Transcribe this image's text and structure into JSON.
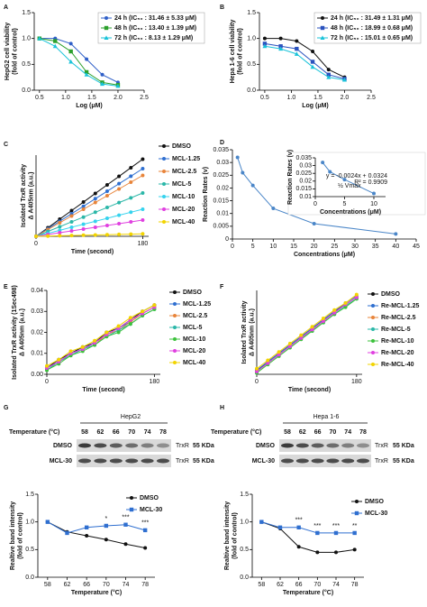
{
  "chart_data": [
    {
      "type": "line",
      "panel": "A",
      "x_label": "Log (μM)",
      "y_label": [
        "HepG2 cell viability",
        "(fold of control)"
      ],
      "x": [
        0.5,
        0.8,
        1.1,
        1.4,
        1.7,
        2.0
      ],
      "xlim": [
        0.4,
        2.5
      ],
      "xticks": [
        0.5,
        {
          "value": 1,
          "label": "1.0"
        },
        1.5,
        {
          "value": 2,
          "label": "2.0"
        },
        2.5
      ],
      "ylim": [
        0,
        1.5
      ],
      "yticks": [
        {
          "value": 0,
          "label": "0.0"
        },
        0.5,
        {
          "value": 1,
          "label": "1.0"
        },
        1.5
      ],
      "series": [
        {
          "name": "24 h (IC₅₀ : 31.46 ± 5.33 μM)",
          "color": "#2f5fc8",
          "marker": "circle",
          "values": [
            1.0,
            1.0,
            0.9,
            0.6,
            0.3,
            0.15
          ]
        },
        {
          "name": "48 h (IC₅₀ : 13.40 ± 1.39 μM)",
          "color": "#2ca02c",
          "marker": "square",
          "values": [
            1.0,
            0.95,
            0.75,
            0.35,
            0.15,
            0.1
          ]
        },
        {
          "name": "72 h (IC₅₀ : 8.13 ± 1.29 μM)",
          "color": "#19c3d9",
          "marker": "triangle",
          "values": [
            1.0,
            0.85,
            0.55,
            0.3,
            0.12,
            0.08
          ]
        }
      ]
    },
    {
      "type": "line",
      "panel": "B",
      "x_label": "Log (μM)",
      "y_label": [
        "Hepa 1-6 cell viability",
        "(fold of control)"
      ],
      "x": [
        0.5,
        0.8,
        1.1,
        1.4,
        1.7,
        2.0
      ],
      "xlim": [
        0.4,
        2.5
      ],
      "xticks": [
        0.5,
        {
          "value": 1,
          "label": "1.0"
        },
        1.5,
        {
          "value": 2,
          "label": "2.0"
        },
        2.5
      ],
      "ylim": [
        0,
        1.5
      ],
      "yticks": [
        {
          "value": 0,
          "label": "0.0"
        },
        0.5,
        {
          "value": 1,
          "label": "1.0"
        },
        1.5
      ],
      "series": [
        {
          "name": "24 h (IC₅₀ : 31.49 ± 1.31 μM)",
          "color": "#111111",
          "marker": "circle",
          "values": [
            1.0,
            1.0,
            0.95,
            0.75,
            0.4,
            0.25
          ]
        },
        {
          "name": "48 h (IC₅₀ : 18.99 ± 0.68 μM)",
          "color": "#2a52be",
          "marker": "square",
          "values": [
            0.9,
            0.85,
            0.8,
            0.55,
            0.3,
            0.22
          ]
        },
        {
          "name": "72 h (IC₅₀ : 15.01 ± 0.65 μM)",
          "color": "#19c3d9",
          "marker": "triangle",
          "values": [
            0.85,
            0.8,
            0.7,
            0.45,
            0.25,
            0.2
          ]
        }
      ]
    },
    {
      "type": "line",
      "panel": "C",
      "x_label": "Time (second)",
      "y_label": [
        "Isolated TrxR activity",
        "Δ A405nm (a.u.)"
      ],
      "x": [
        0,
        20,
        40,
        60,
        80,
        100,
        120,
        140,
        160,
        180
      ],
      "xlim": [
        0,
        190
      ],
      "xticks": [
        0,
        180
      ],
      "ylim": [
        0,
        0.6
      ],
      "series": [
        {
          "name": "DMSO",
          "color": "#111111",
          "values": [
            0,
            0.063,
            0.127,
            0.19,
            0.253,
            0.317,
            0.38,
            0.443,
            0.507,
            0.57
          ]
        },
        {
          "name": "MCL-1.25",
          "color": "#2f6fd0",
          "values": [
            0,
            0.056,
            0.111,
            0.167,
            0.222,
            0.278,
            0.333,
            0.389,
            0.444,
            0.5
          ]
        },
        {
          "name": "MCL-2.5",
          "color": "#e8843a",
          "values": [
            0,
            0.05,
            0.1,
            0.15,
            0.2,
            0.25,
            0.3,
            0.35,
            0.4,
            0.45
          ]
        },
        {
          "name": "MCL-5",
          "color": "#2bb7a8",
          "values": [
            0,
            0.036,
            0.071,
            0.107,
            0.142,
            0.178,
            0.213,
            0.249,
            0.284,
            0.32
          ]
        },
        {
          "name": "MCL-10",
          "color": "#35d3ee",
          "values": [
            0,
            0.022,
            0.044,
            0.067,
            0.089,
            0.111,
            0.133,
            0.156,
            0.178,
            0.2
          ]
        },
        {
          "name": "MCL-20",
          "color": "#e040e0",
          "values": [
            0,
            0.013,
            0.027,
            0.04,
            0.053,
            0.067,
            0.08,
            0.093,
            0.107,
            0.12
          ]
        },
        {
          "name": "MCL-40",
          "color": "#f2d400",
          "values": [
            0,
            0.002,
            0.004,
            0.006,
            0.008,
            0.01,
            0.012,
            0.014,
            0.016,
            0.018
          ]
        }
      ]
    },
    {
      "type": "line",
      "panel": "D",
      "x_label": "Concentrations (μM)",
      "y_label": [
        "Reaction Rates (v)"
      ],
      "x": [
        1.25,
        2.5,
        5,
        10,
        20,
        40
      ],
      "xlim": [
        0,
        45
      ],
      "xticks": [
        0,
        5,
        10,
        15,
        20,
        25,
        30,
        35,
        40,
        45
      ],
      "ylim": [
        0,
        0.035
      ],
      "yticks": [
        0,
        0.005,
        0.01,
        0.015,
        0.02,
        0.025,
        0.03,
        0.035
      ],
      "series": [
        {
          "color": "#4a86c8",
          "marker": "circle",
          "values": [
            0.032,
            0.026,
            0.021,
            0.012,
            0.006,
            0.002
          ]
        }
      ],
      "inset": {
        "type": "line",
        "x_label": "Concentrations (μM)",
        "y_label": [
          "Reaction Rates (v)"
        ],
        "x": [
          1.25,
          2.5,
          5,
          10
        ],
        "xlim": [
          0,
          12
        ],
        "xticks": [
          0,
          5,
          10
        ],
        "ylim": [
          0.01,
          0.035
        ],
        "yticks": [
          0.01,
          0.015,
          0.02,
          0.025,
          0.03,
          0.035
        ],
        "series": [
          {
            "color": "#4a86c8",
            "marker": "circle",
            "values": [
              0.032,
              0.026,
              0.021,
              0.012
            ]
          }
        ],
        "annotations": [
          "y = -0.0024x + 0.0324",
          "R² = 0.9909",
          "½ Vmax"
        ]
      }
    },
    {
      "type": "line",
      "panel": "E",
      "x_label": "Time (second)",
      "y_label": [
        "Isolated TrxR activity (1Sec498)",
        "Δ A405nm (a.u.)"
      ],
      "x": [
        0,
        20,
        40,
        60,
        80,
        100,
        120,
        140,
        160,
        180
      ],
      "xlim": [
        0,
        190
      ],
      "xticks": [
        0,
        180
      ],
      "ylim": [
        0,
        0.04
      ],
      "yticks": [
        {
          "value": 0,
          "label": "0.00"
        },
        0.01,
        0.02,
        0.03,
        0.04
      ],
      "series": [
        {
          "name": "DMSO",
          "color": "#111111",
          "values": [
            0.003,
            0.007,
            0.01,
            0.013,
            0.015,
            0.02,
            0.022,
            0.026,
            0.03,
            0.033
          ]
        },
        {
          "name": "MCL-1.25",
          "color": "#2f6fd0",
          "values": [
            0.003,
            0.006,
            0.01,
            0.012,
            0.015,
            0.019,
            0.022,
            0.025,
            0.029,
            0.032
          ]
        },
        {
          "name": "MCL-2.5",
          "color": "#e8843a",
          "values": [
            0.002,
            0.006,
            0.009,
            0.012,
            0.014,
            0.019,
            0.021,
            0.025,
            0.029,
            0.032
          ]
        },
        {
          "name": "MCL-5",
          "color": "#2bb7a8",
          "values": [
            0.002,
            0.006,
            0.009,
            0.012,
            0.014,
            0.018,
            0.021,
            0.024,
            0.028,
            0.031
          ]
        },
        {
          "name": "MCL-10",
          "color": "#3cc23c",
          "values": [
            0.002,
            0.005,
            0.009,
            0.011,
            0.014,
            0.018,
            0.02,
            0.024,
            0.028,
            0.031
          ]
        },
        {
          "name": "MCL-20",
          "color": "#e040e0",
          "values": [
            0.003,
            0.006,
            0.01,
            0.012,
            0.015,
            0.019,
            0.022,
            0.026,
            0.029,
            0.032
          ]
        },
        {
          "name": "MCL-40",
          "color": "#f2d400",
          "values": [
            0.004,
            0.007,
            0.011,
            0.013,
            0.016,
            0.02,
            0.023,
            0.027,
            0.03,
            0.033
          ]
        }
      ]
    },
    {
      "type": "line",
      "panel": "F",
      "x_label": "Time (second)",
      "y_label": [
        "Isolated TrxR activity",
        "Δ A405nm (a.u.)"
      ],
      "x": [
        0,
        20,
        40,
        60,
        80,
        100,
        120,
        140,
        160,
        180
      ],
      "xlim": [
        0,
        190
      ],
      "xticks": [
        0,
        180
      ],
      "ylim": [
        0,
        0.6
      ],
      "series": [
        {
          "name": "DMSO",
          "color": "#111111",
          "values": [
            0.02,
            0.09,
            0.15,
            0.21,
            0.27,
            0.33,
            0.39,
            0.45,
            0.5,
            0.55
          ]
        },
        {
          "name": "Re-MCL-1.25",
          "color": "#2f6fd0",
          "values": [
            0.03,
            0.09,
            0.15,
            0.21,
            0.27,
            0.33,
            0.39,
            0.45,
            0.51,
            0.56
          ]
        },
        {
          "name": "Re-MCL-2.5",
          "color": "#e8843a",
          "values": [
            0.02,
            0.08,
            0.14,
            0.2,
            0.26,
            0.32,
            0.38,
            0.44,
            0.5,
            0.55
          ]
        },
        {
          "name": "Re-MCL-5",
          "color": "#2bb7a8",
          "values": [
            0.02,
            0.08,
            0.14,
            0.2,
            0.26,
            0.31,
            0.37,
            0.43,
            0.49,
            0.54
          ]
        },
        {
          "name": "Re-MCL-10",
          "color": "#3cc23c",
          "values": [
            0.01,
            0.07,
            0.13,
            0.19,
            0.25,
            0.31,
            0.37,
            0.43,
            0.48,
            0.54
          ]
        },
        {
          "name": "Re-MCL-20",
          "color": "#e040e0",
          "values": [
            0.02,
            0.08,
            0.14,
            0.2,
            0.26,
            0.32,
            0.38,
            0.44,
            0.5,
            0.55
          ]
        },
        {
          "name": "Re-MCL-40",
          "color": "#f2d400",
          "values": [
            0.04,
            0.1,
            0.16,
            0.22,
            0.28,
            0.34,
            0.4,
            0.46,
            0.51,
            0.57
          ]
        }
      ]
    },
    {
      "type": "line",
      "panel": "G",
      "x_label": "Temperature (°C)",
      "y_label": [
        "Realtive band intensity",
        "(fold of control)"
      ],
      "x": [
        58,
        62,
        66,
        70,
        74,
        78
      ],
      "xlim": [
        56,
        80
      ],
      "xticks": [
        58,
        62,
        66,
        70,
        74,
        78
      ],
      "ylim": [
        0,
        1.5
      ],
      "yticks": [
        {
          "value": 0,
          "label": "0.0"
        },
        0.5,
        {
          "value": 1,
          "label": "1.0"
        },
        1.5
      ],
      "series": [
        {
          "name": "DMSO",
          "color": "#111111",
          "marker": "circle",
          "values": [
            1.0,
            0.82,
            0.75,
            0.68,
            0.6,
            0.53
          ]
        },
        {
          "name": "MCL-30",
          "color": "#2f6fd0",
          "marker": "square",
          "values": [
            1.0,
            0.8,
            0.9,
            0.93,
            0.95,
            0.85
          ],
          "significance": [
            null,
            null,
            null,
            "*",
            "***",
            "***"
          ]
        }
      ]
    },
    {
      "type": "line",
      "panel": "H",
      "x_label": "Temperature (°C)",
      "y_label": [
        "Realtive band intensity",
        "(fold of control)"
      ],
      "x": [
        58,
        62,
        66,
        70,
        74,
        78
      ],
      "xlim": [
        56,
        80
      ],
      "xticks": [
        58,
        62,
        66,
        70,
        74,
        78
      ],
      "ylim": [
        0,
        1.5
      ],
      "yticks": [
        {
          "value": 0,
          "label": "0.0"
        },
        0.5,
        {
          "value": 1,
          "label": "1.0"
        },
        1.5
      ],
      "series": [
        {
          "name": "DMSO",
          "color": "#111111",
          "marker": "circle",
          "values": [
            1.0,
            0.88,
            0.55,
            0.45,
            0.45,
            0.5
          ]
        },
        {
          "name": "MCL-30",
          "color": "#2f6fd0",
          "marker": "square",
          "values": [
            1.0,
            0.9,
            0.9,
            0.8,
            0.8,
            0.8
          ],
          "significance": [
            null,
            null,
            "***",
            "***",
            "***",
            "**"
          ]
        }
      ]
    }
  ],
  "blots": [
    {
      "title": "HepG2",
      "header": "Temperature (°C)",
      "temperatures": [
        "58",
        "62",
        "66",
        "70",
        "74",
        "78"
      ],
      "rows": [
        {
          "label": "DMSO",
          "protein": "TrxR",
          "size": "55 KDa"
        },
        {
          "label": "MCL-30",
          "protein": "TrxR",
          "size": "55 KDa"
        }
      ]
    },
    {
      "title": "Hepa 1-6",
      "header": "Temperature (°C)",
      "temperatures": [
        "58",
        "62",
        "66",
        "70",
        "74",
        "78"
      ],
      "rows": [
        {
          "label": "DMSO",
          "protein": "TrxR",
          "size": "55 KDa"
        },
        {
          "label": "MCL-30",
          "protein": "TrxR",
          "size": "55 KDa"
        }
      ]
    }
  ]
}
